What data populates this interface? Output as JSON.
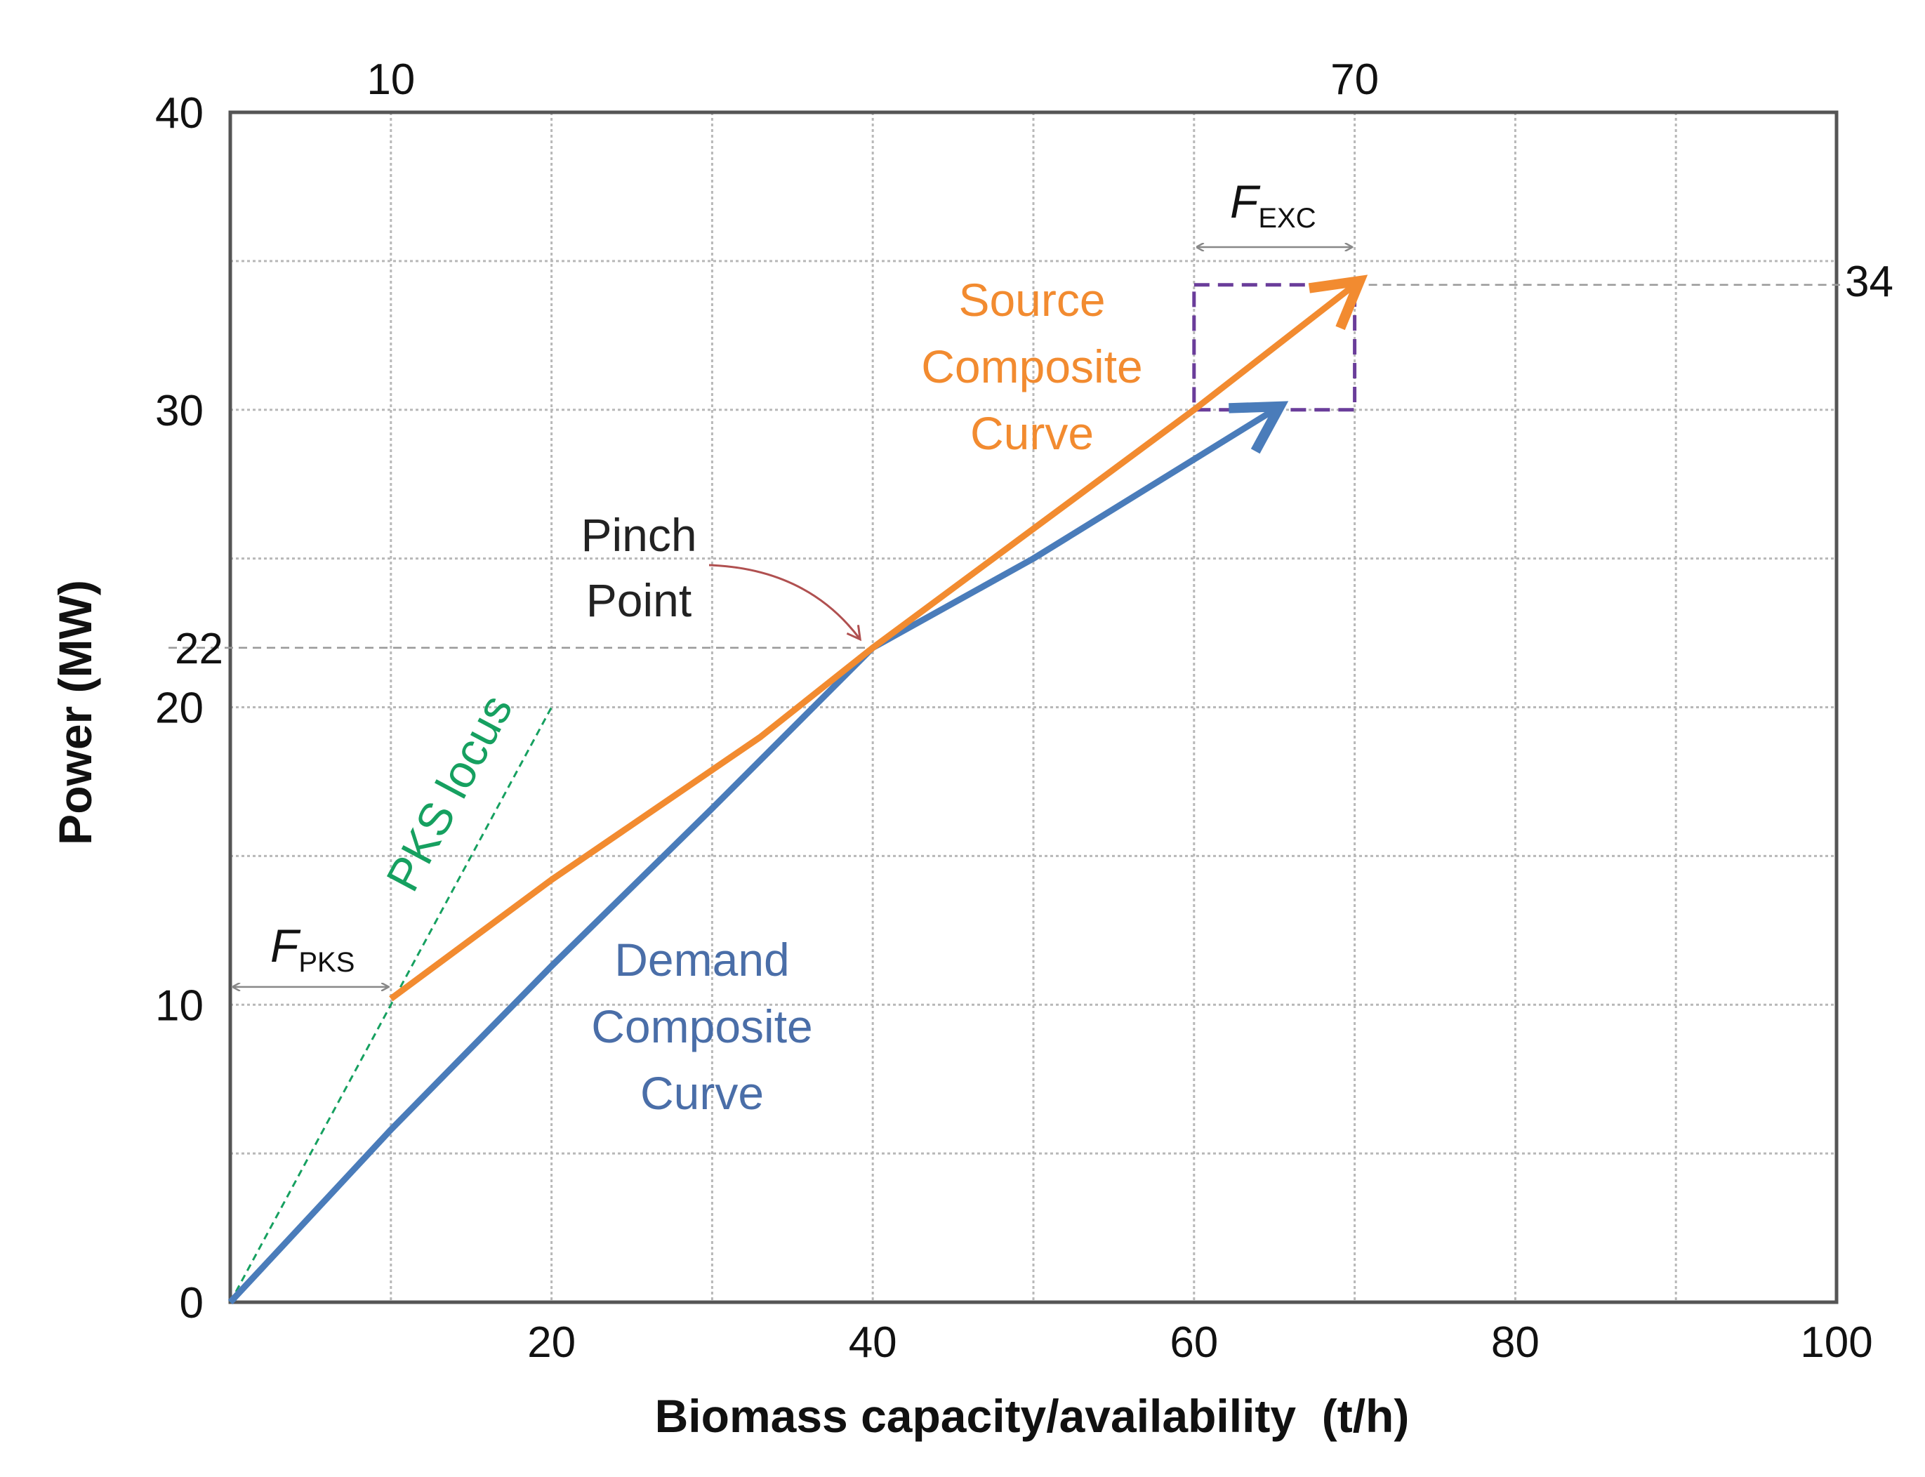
{
  "chart_data": {
    "type": "line",
    "xlabel": "Biomass capacity/availability  (t/h)",
    "ylabel": "Power (MW)",
    "xlim": [
      0,
      100
    ],
    "ylim": [
      0,
      40
    ],
    "x_ticks": [
      "20",
      "40",
      "60",
      "80",
      "100"
    ],
    "y_ticks": [
      "0",
      "10",
      "20",
      "30",
      "40"
    ],
    "x_gridlines": [
      10,
      20,
      30,
      40,
      50,
      60,
      70,
      80,
      90,
      100
    ],
    "y_gridlines": [
      5,
      10,
      15,
      20,
      25,
      30,
      35,
      40
    ],
    "grid": true,
    "extra_ticks": {
      "top_x": [
        "10",
        "70"
      ],
      "left_y": "22",
      "right_y": "34"
    },
    "series": [
      {
        "name": "Source Composite Curve",
        "color": "#f28b30",
        "points": [
          [
            10,
            10.2
          ],
          [
            20,
            14.2
          ],
          [
            33,
            19
          ],
          [
            40,
            22
          ],
          [
            60,
            30
          ],
          [
            70,
            34.2
          ]
        ]
      },
      {
        "name": "Demand Composite Curve",
        "color": "#4a7cba",
        "points": [
          [
            0,
            0
          ],
          [
            10,
            5.8
          ],
          [
            20,
            11.3
          ],
          [
            30,
            16.6
          ],
          [
            40,
            22
          ],
          [
            50,
            25
          ],
          [
            65,
            30
          ]
        ]
      }
    ],
    "pks_locus": {
      "label": "PKS locus",
      "color": "#16a060",
      "points": [
        [
          0,
          0
        ],
        [
          20,
          20
        ]
      ]
    },
    "reference_lines": [
      {
        "axis": "y",
        "value": 22,
        "from_x": 0,
        "to_x": 40
      },
      {
        "axis": "y",
        "value": 34.2,
        "from_x": 70,
        "to_x": 100
      }
    ],
    "excess_box": {
      "x": [
        60,
        70
      ],
      "y": [
        30,
        34.2
      ],
      "color": "#6a3d9a",
      "label_main": "F",
      "label_sub": "EXC"
    },
    "pks_arrow": {
      "x": [
        0,
        10
      ],
      "y": 10.6,
      "label_main": "F",
      "label_sub": "PKS"
    },
    "pinch": {
      "label_line1": "Pinch",
      "label_line2": "Point",
      "point": [
        40,
        22
      ],
      "arrow_color": "#b05050"
    },
    "annotations": {
      "source_lines": [
        "Source",
        "Composite",
        "Curve"
      ],
      "demand_lines": [
        "Demand",
        "Composite",
        "Curve"
      ]
    }
  }
}
